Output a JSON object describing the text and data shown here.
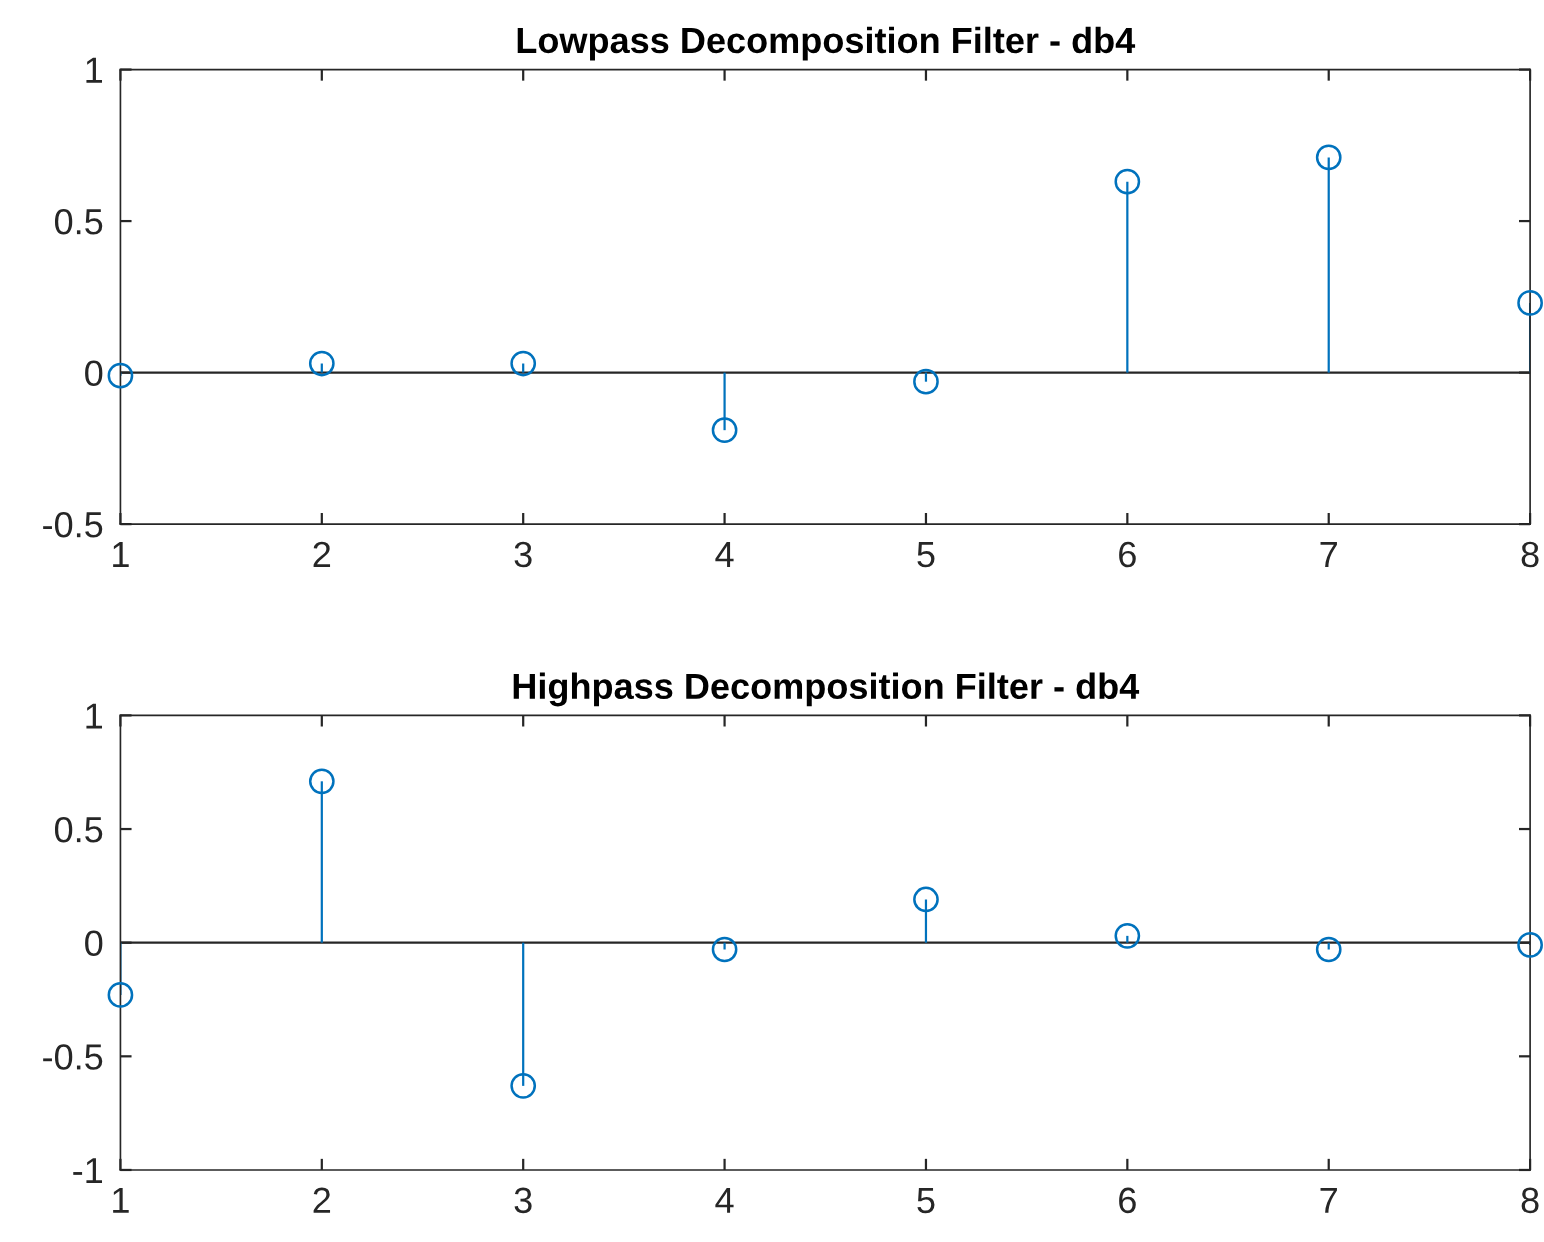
{
  "chart_data": [
    {
      "type": "lollipop",
      "title": "Lowpass Decomposition Filter - db4",
      "x": [
        1,
        2,
        3,
        4,
        5,
        6,
        7,
        8
      ],
      "series": [
        {
          "color": "#0072bd",
          "values": [
            -0.01,
            0.03,
            0.03,
            -0.19,
            -0.03,
            0.63,
            0.71,
            0.23
          ]
        }
      ],
      "marker": "circle",
      "xlim": [
        1,
        8
      ],
      "xticks": [
        1,
        2,
        3,
        4,
        5,
        6,
        7,
        8
      ],
      "ylim": [
        -0.5,
        1
      ],
      "yticks": [
        -0.5,
        0,
        0.5,
        1
      ],
      "ref_lines": [
        {
          "axis": "y",
          "value": 0,
          "color": "#262626"
        }
      ]
    },
    {
      "type": "lollipop",
      "title": "Highpass Decomposition Filter - db4",
      "x": [
        1,
        2,
        3,
        4,
        5,
        6,
        7,
        8
      ],
      "series": [
        {
          "color": "#0072bd",
          "values": [
            -0.23,
            0.71,
            -0.63,
            -0.03,
            0.19,
            0.03,
            -0.03,
            -0.01
          ]
        }
      ],
      "marker": "circle",
      "xlim": [
        1,
        8
      ],
      "xticks": [
        1,
        2,
        3,
        4,
        5,
        6,
        7,
        8
      ],
      "ylim": [
        -1,
        1
      ],
      "yticks": [
        -1,
        -0.5,
        0,
        0.5,
        1
      ],
      "ref_lines": [
        {
          "axis": "y",
          "value": 0,
          "color": "#262626"
        }
      ]
    }
  ]
}
